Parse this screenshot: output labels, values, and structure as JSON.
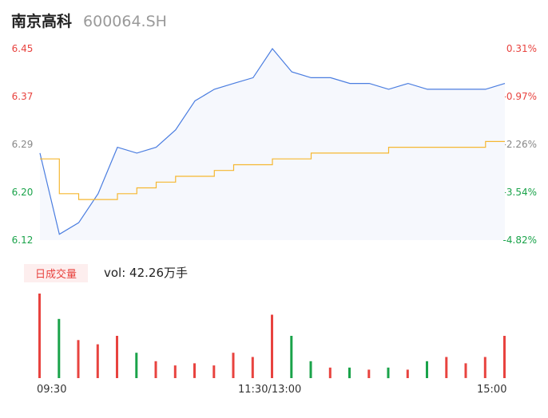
{
  "header": {
    "stock_name": "南京高科",
    "stock_code": "600064.SH"
  },
  "price_axis": {
    "left_ticks": [
      "6.45",
      "6.37",
      "6.29",
      "6.20",
      "6.12"
    ],
    "right_ticks": [
      "0.31%",
      "-0.97%",
      "-2.26%",
      "-3.54%",
      "-4.82%"
    ],
    "colors": [
      "#e8433f",
      "#e8433f",
      "#888888",
      "#1aa34a",
      "#1aa34a"
    ]
  },
  "volume_panel": {
    "tag": "日成交量",
    "vol_label": "vol: 42.26万手"
  },
  "time_axis": {
    "labels": [
      "09:30",
      "11:30/13:00",
      "15:00"
    ]
  },
  "colors": {
    "price_line": "#4a7de0",
    "avg_line": "#f5b731",
    "area_fill": "#f6f8fd",
    "up": "#e8433f",
    "down": "#1aa34a"
  },
  "chart_data": {
    "type": "line",
    "title": "",
    "xlabel": "",
    "ylabel": "",
    "ylim": [
      6.12,
      6.45
    ],
    "x": [
      "09:30",
      "09:40",
      "09:50",
      "10:00",
      "10:10",
      "10:20",
      "10:30",
      "10:40",
      "10:50",
      "11:00",
      "11:10",
      "11:20",
      "11:30/13:00",
      "13:10",
      "13:20",
      "13:30",
      "13:40",
      "13:50",
      "14:00",
      "14:10",
      "14:20",
      "14:30",
      "14:40",
      "14:50",
      "15:00"
    ],
    "series": [
      {
        "values": [
          6.27,
          6.13,
          6.15,
          6.2,
          6.28,
          6.27,
          6.28,
          6.31,
          6.36,
          6.38,
          6.39,
          6.4,
          6.45,
          6.41,
          6.4,
          6.4,
          6.39,
          6.39,
          6.38,
          6.39,
          6.38,
          6.38,
          6.38,
          6.38,
          6.39
        ]
      },
      {
        "values": [
          6.26,
          6.2,
          6.19,
          6.19,
          6.2,
          6.21,
          6.22,
          6.23,
          6.23,
          6.24,
          6.25,
          6.25,
          6.26,
          6.26,
          6.27,
          6.27,
          6.27,
          6.27,
          6.28,
          6.28,
          6.28,
          6.28,
          6.28,
          6.29,
          6.29
        ]
      }
    ],
    "volume": [
      40,
      28,
      18,
      16,
      20,
      12,
      8,
      6,
      7,
      6,
      12,
      10,
      30,
      20,
      8,
      5,
      5,
      4,
      5,
      4,
      8,
      10,
      7,
      10,
      20
    ]
  }
}
